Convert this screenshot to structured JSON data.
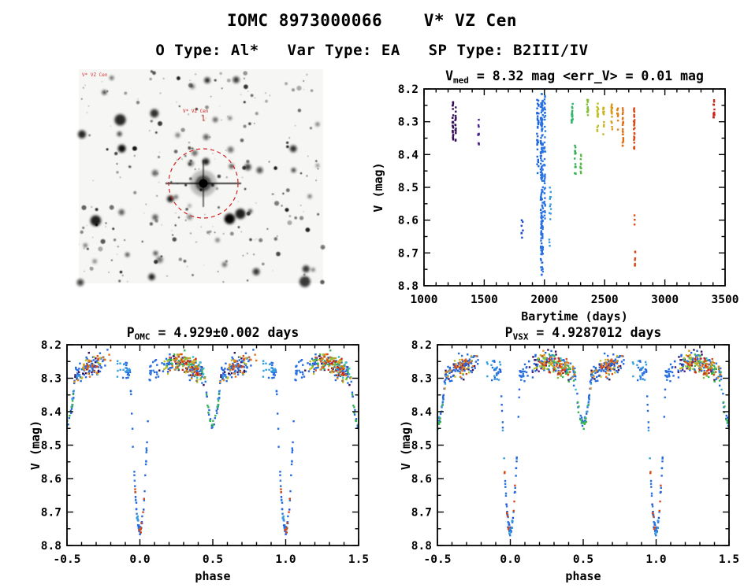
{
  "header": {
    "title": "IOMC 8973000066    V* VZ Cen",
    "subtitle": "O Type: Al*   Var Type: EA   SP Type: B2III/IV"
  },
  "finder": {
    "star_label": "V* VZ Cen",
    "corner_label": "V* VZ Cen",
    "circle_color": "#d42020",
    "seed": 99,
    "n_faint": 235,
    "n_medium": 40,
    "n_bright": 10
  },
  "colormap": [
    [
      1200,
      "#30084a"
    ],
    [
      1450,
      "#482090"
    ],
    [
      1700,
      "#2438c8"
    ],
    [
      1850,
      "#1a50d8"
    ],
    [
      1950,
      "#2266dd"
    ],
    [
      2010,
      "#2e7ae4"
    ],
    [
      2060,
      "#38a8dc"
    ],
    [
      2150,
      "#2cc4c0"
    ],
    [
      2250,
      "#2eb254"
    ],
    [
      2350,
      "#7fc03a"
    ],
    [
      2430,
      "#b8c428"
    ],
    [
      2520,
      "#d4a81e"
    ],
    [
      2600,
      "#e08818"
    ],
    [
      2680,
      "#e26014"
    ],
    [
      2760,
      "#d64415"
    ],
    [
      3000,
      "#d03218"
    ],
    [
      3450,
      "#cc2418"
    ]
  ],
  "chart_data": [
    {
      "id": "lightcurve-time",
      "type": "scatter",
      "title": {
        "prefix": "V",
        "sub": "med",
        "rest": " = 8.32 mag <err_V> = 0.01 mag"
      },
      "xlabel": "Barytime (days)",
      "ylabel": "V (mag)",
      "xlim": [
        1000,
        3500
      ],
      "ylim": [
        8.2,
        8.8
      ],
      "y_axis_note": "magnitude scale, brighter (8.2) at top",
      "xticks": [
        1000,
        1500,
        2000,
        2500,
        3000,
        3500
      ],
      "xtick_labels": [
        "1000",
        "1500",
        "2000",
        "2500",
        "3000",
        "3500"
      ],
      "xminor": 100,
      "yticks": [
        8.2,
        8.3,
        8.4,
        8.5,
        8.6,
        8.7,
        8.8
      ],
      "ytick_labels": [
        "8.2",
        "8.3",
        "8.4",
        "8.5",
        "8.6",
        "8.7",
        "8.8"
      ],
      "yminor": 0.05,
      "seed": 3,
      "clusters": [
        {
          "x": 1240,
          "dx": 4,
          "vmin": 8.24,
          "vmax": 8.37,
          "n": 26
        },
        {
          "x": 1262,
          "dx": 3,
          "vmin": 8.25,
          "vmax": 8.36,
          "n": 16
        },
        {
          "x": 1452,
          "dx": 4,
          "vmin": 8.29,
          "vmax": 8.37,
          "n": 10
        },
        {
          "x": 1815,
          "dx": 6,
          "vmin": 8.6,
          "vmax": 8.66,
          "n": 7
        },
        {
          "x": 1945,
          "dx": 7,
          "vmin": 8.23,
          "vmax": 8.46,
          "n": 35
        },
        {
          "x": 1978,
          "dx": 10,
          "vmin": 8.21,
          "vmax": 8.77,
          "n": 170
        },
        {
          "x": 2002,
          "dx": 6,
          "vmin": 8.22,
          "vmax": 8.6,
          "n": 45
        },
        {
          "x": 2048,
          "dx": 9,
          "vmin": 8.5,
          "vmax": 8.68,
          "n": 14
        },
        {
          "x": 2230,
          "dx": 5,
          "vmin": 8.24,
          "vmax": 8.31,
          "n": 18
        },
        {
          "x": 2256,
          "dx": 5,
          "vmin": 8.37,
          "vmax": 8.46,
          "n": 16
        },
        {
          "x": 2302,
          "dx": 4,
          "vmin": 8.4,
          "vmax": 8.47,
          "n": 10
        },
        {
          "x": 2358,
          "dx": 5,
          "vmin": 8.22,
          "vmax": 8.28,
          "n": 14
        },
        {
          "x": 2442,
          "dx": 5,
          "vmin": 8.24,
          "vmax": 8.33,
          "n": 16
        },
        {
          "x": 2492,
          "dx": 4,
          "vmin": 8.25,
          "vmax": 8.35,
          "n": 12
        },
        {
          "x": 2560,
          "dx": 5,
          "vmin": 8.24,
          "vmax": 8.34,
          "n": 16
        },
        {
          "x": 2608,
          "dx": 4,
          "vmin": 8.25,
          "vmax": 8.33,
          "n": 10
        },
        {
          "x": 2652,
          "dx": 3,
          "vmin": 8.23,
          "vmax": 8.38,
          "n": 22
        },
        {
          "x": 2745,
          "dx": 4,
          "vmin": 8.24,
          "vmax": 8.39,
          "n": 26
        },
        {
          "x": 2748,
          "dx": 2,
          "vmin": 8.58,
          "vmax": 8.62,
          "n": 3
        },
        {
          "x": 2752,
          "dx": 2,
          "vmin": 8.69,
          "vmax": 8.74,
          "n": 7
        },
        {
          "x": 3408,
          "dx": 4,
          "vmin": 8.23,
          "vmax": 8.29,
          "n": 14
        }
      ]
    },
    {
      "id": "phase-omc",
      "type": "scatter",
      "title": {
        "prefix": "P",
        "sub": "OMC",
        "rest": " = 4.929±0.002 days"
      },
      "xlabel": "phase",
      "ylabel": "V (mag)",
      "xlim": [
        -0.5,
        1.5
      ],
      "ylim": [
        8.2,
        8.8
      ],
      "xticks": [
        -0.5,
        0.0,
        0.5,
        1.0,
        1.5
      ],
      "xtick_labels": [
        "-0.5",
        "0.0",
        "0.5",
        "1.0",
        "1.5"
      ],
      "xminor": 0.1,
      "yticks": [
        8.2,
        8.3,
        8.4,
        8.5,
        8.6,
        8.7,
        8.8
      ],
      "ytick_labels": [
        "8.2",
        "8.3",
        "8.4",
        "8.5",
        "8.6",
        "8.7",
        "8.8"
      ],
      "yminor": 0.05,
      "seed": 7,
      "model": {
        "base": 8.272,
        "scatter": 0.026,
        "primary_depth": 0.485,
        "primary_halfwidth": 0.068,
        "secondary_depth": 0.165,
        "secondary_halfwidth": 0.062,
        "ellipsoidal_amp": 0.018
      },
      "epochs": [
        {
          "t": 1250,
          "windows": [
            [
              0.13,
              0.45,
              26
            ],
            [
              0.55,
              0.76,
              18
            ],
            [
              -0.46,
              -0.3,
              10
            ]
          ]
        },
        {
          "t": 1450,
          "windows": [
            [
              0.18,
              0.38,
              8
            ]
          ]
        },
        {
          "t": 1830,
          "windows": [
            [
              -0.035,
              0.035,
              7
            ]
          ]
        },
        {
          "t": 1960,
          "windows": [
            [
              -0.5,
              -0.26,
              40
            ],
            [
              -0.13,
              0.13,
              60
            ],
            [
              0.15,
              0.5,
              60
            ],
            [
              0.52,
              0.78,
              40
            ]
          ]
        },
        {
          "t": 2000,
          "windows": [
            [
              -0.1,
              0.1,
              25
            ],
            [
              0.2,
              0.45,
              20
            ]
          ]
        },
        {
          "t": 2050,
          "windows": [
            [
              -0.16,
              -0.03,
              14
            ],
            [
              -0.02,
              0.02,
              6
            ],
            [
              -0.5,
              -0.42,
              8
            ]
          ]
        },
        {
          "t": 2150,
          "windows": [
            [
              0.3,
              0.45,
              10
            ]
          ]
        },
        {
          "t": 2260,
          "windows": [
            [
              0.18,
              0.45,
              28
            ],
            [
              0.45,
              0.55,
              14
            ]
          ]
        },
        {
          "t": 2360,
          "windows": [
            [
              0.2,
              0.42,
              16
            ]
          ]
        },
        {
          "t": 2450,
          "windows": [
            [
              0.15,
              0.4,
              20
            ],
            [
              0.6,
              0.75,
              10
            ]
          ]
        },
        {
          "t": 2580,
          "windows": [
            [
              0.2,
              0.45,
              20
            ],
            [
              0.55,
              0.7,
              12
            ]
          ]
        },
        {
          "t": 2650,
          "windows": [
            [
              -0.35,
              -0.2,
              12
            ],
            [
              0.3,
              0.45,
              10
            ]
          ]
        },
        {
          "t": 2750,
          "windows": [
            [
              -0.04,
              0.04,
              10
            ],
            [
              0.2,
              0.4,
              16
            ],
            [
              0.62,
              0.72,
              8
            ]
          ]
        },
        {
          "t": 3405,
          "windows": [
            [
              0.25,
              0.4,
              10
            ]
          ]
        }
      ]
    },
    {
      "id": "phase-vsx",
      "type": "scatter",
      "title": {
        "prefix": "P",
        "sub": "VSX",
        "rest": " = 4.9287012 days"
      },
      "xlabel": "phase",
      "ylabel": "V (mag)",
      "xlim": [
        -0.5,
        1.5
      ],
      "ylim": [
        8.2,
        8.8
      ],
      "xticks": [
        -0.5,
        0.0,
        0.5,
        1.0,
        1.5
      ],
      "xtick_labels": [
        "-0.5",
        "0.0",
        "0.5",
        "1.0",
        "1.5"
      ],
      "xminor": 0.1,
      "yticks": [
        8.2,
        8.3,
        8.4,
        8.5,
        8.6,
        8.7,
        8.8
      ],
      "ytick_labels": [
        "8.2",
        "8.3",
        "8.4",
        "8.5",
        "8.6",
        "8.7",
        "8.8"
      ],
      "yminor": 0.05,
      "seed": 13,
      "model": {
        "base": 8.272,
        "scatter": 0.026,
        "primary_depth": 0.485,
        "primary_halfwidth": 0.068,
        "secondary_depth": 0.165,
        "secondary_halfwidth": 0.062,
        "ellipsoidal_amp": 0.018
      },
      "epochs": [
        {
          "t": 1250,
          "windows": [
            [
              0.13,
              0.45,
              26
            ],
            [
              0.55,
              0.76,
              18
            ],
            [
              -0.46,
              -0.3,
              10
            ]
          ]
        },
        {
          "t": 1450,
          "windows": [
            [
              0.18,
              0.38,
              8
            ]
          ]
        },
        {
          "t": 1830,
          "windows": [
            [
              -0.035,
              0.035,
              7
            ]
          ]
        },
        {
          "t": 1960,
          "windows": [
            [
              -0.5,
              -0.26,
              40
            ],
            [
              -0.13,
              0.13,
              60
            ],
            [
              0.15,
              0.5,
              60
            ],
            [
              0.52,
              0.78,
              40
            ]
          ]
        },
        {
          "t": 2000,
          "windows": [
            [
              -0.1,
              0.1,
              25
            ],
            [
              0.2,
              0.45,
              20
            ]
          ]
        },
        {
          "t": 2050,
          "windows": [
            [
              -0.16,
              -0.03,
              14
            ],
            [
              -0.02,
              0.02,
              6
            ],
            [
              -0.5,
              -0.42,
              8
            ]
          ]
        },
        {
          "t": 2150,
          "windows": [
            [
              0.3,
              0.45,
              10
            ]
          ]
        },
        {
          "t": 2260,
          "windows": [
            [
              0.18,
              0.45,
              28
            ],
            [
              0.45,
              0.55,
              14
            ]
          ]
        },
        {
          "t": 2360,
          "windows": [
            [
              0.2,
              0.42,
              16
            ]
          ]
        },
        {
          "t": 2450,
          "windows": [
            [
              0.15,
              0.4,
              20
            ],
            [
              0.6,
              0.75,
              10
            ]
          ]
        },
        {
          "t": 2580,
          "windows": [
            [
              0.2,
              0.45,
              20
            ],
            [
              0.55,
              0.7,
              12
            ]
          ]
        },
        {
          "t": 2650,
          "windows": [
            [
              -0.35,
              -0.2,
              12
            ],
            [
              0.3,
              0.45,
              10
            ]
          ]
        },
        {
          "t": 2750,
          "windows": [
            [
              -0.04,
              0.04,
              10
            ],
            [
              0.2,
              0.4,
              16
            ],
            [
              0.62,
              0.72,
              8
            ]
          ]
        },
        {
          "t": 3405,
          "windows": [
            [
              0.25,
              0.4,
              10
            ]
          ]
        }
      ]
    }
  ]
}
